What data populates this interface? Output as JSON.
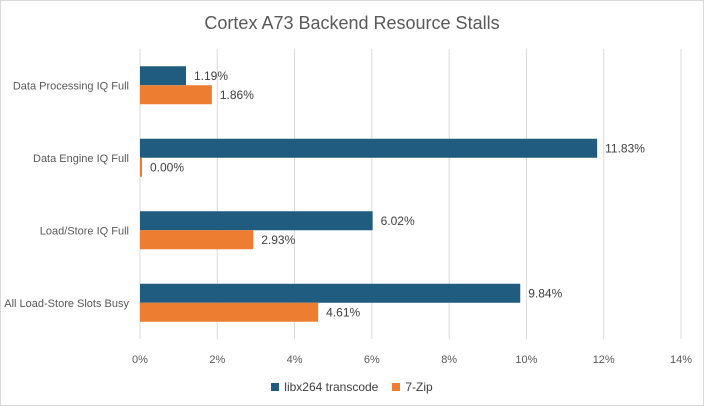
{
  "chart_data": {
    "type": "bar",
    "orientation": "horizontal",
    "title": "Cortex A73 Backend Resource Stalls",
    "categories": [
      "Data Processing IQ Full",
      "Data Engine IQ Full",
      "Load/Store IQ Full",
      "All Load-Store Slots Busy"
    ],
    "series": [
      {
        "name": "libx264 transcode",
        "color": "#1f5c80",
        "values": [
          1.19,
          11.83,
          6.02,
          9.84
        ],
        "labels": [
          "1.19%",
          "11.83%",
          "6.02%",
          "9.84%"
        ]
      },
      {
        "name": "7-Zip",
        "color": "#ed7d31",
        "values": [
          1.86,
          0.0,
          2.93,
          4.61
        ],
        "labels": [
          "1.86%",
          "0.00%",
          "2.93%",
          "4.61%"
        ]
      }
    ],
    "xlim": [
      0,
      14
    ],
    "xticks": [
      "0%",
      "2%",
      "4%",
      "6%",
      "8%",
      "10%",
      "12%",
      "14%"
    ],
    "grid": "vertical",
    "legend_position": "bottom"
  }
}
